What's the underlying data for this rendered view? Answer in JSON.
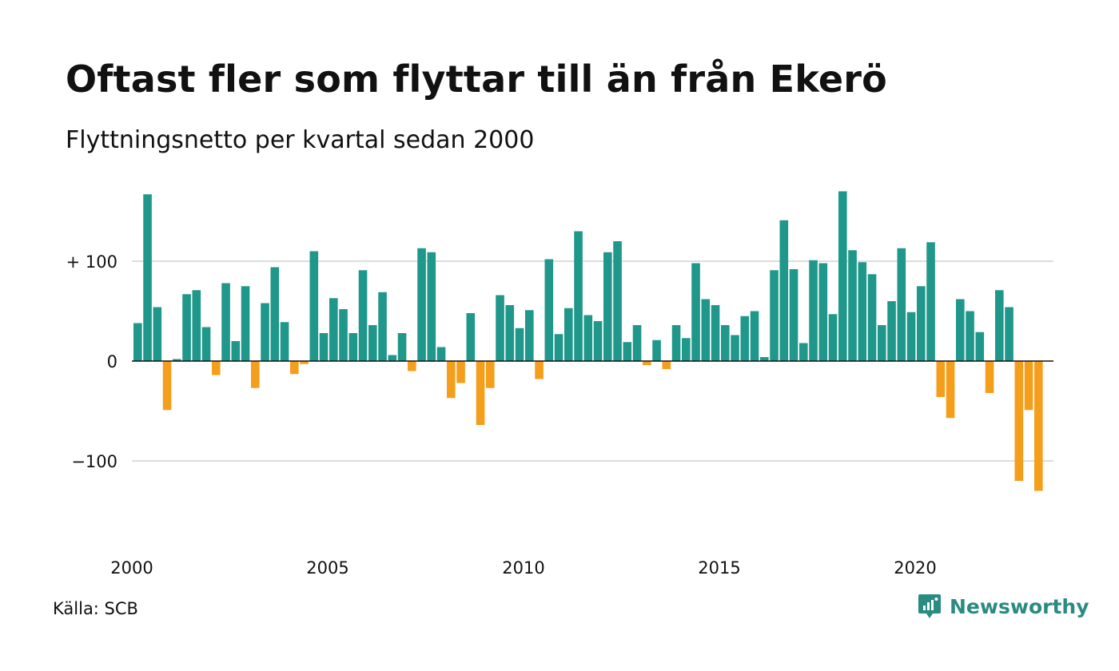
{
  "header": {
    "title": "Oftast fler som flyttar till än från Ekerö",
    "subtitle": "Flyttningsnetto per kvartal sedan 2000"
  },
  "footer": {
    "source": "Källa: SCB",
    "brand": "Newsworthy",
    "brand_icon": "newsworthy-logo-icon"
  },
  "colors": {
    "positive": "#1f978a",
    "negative": "#f59e1b",
    "grid": "#dddddd",
    "zero_line": "#111111",
    "brand": "#2a8b82"
  },
  "chart_data": {
    "type": "bar",
    "title": "Oftast fler som flyttar till än från Ekerö",
    "subtitle": "Flyttningsnetto per kvartal sedan 2000",
    "x_start": "2000 Q1",
    "x_interval": "quarter",
    "x_ticks": [
      "2000",
      "2005",
      "2010",
      "2015",
      "2020"
    ],
    "y_ticks": [
      {
        "value": 100,
        "label": "+ 100"
      },
      {
        "value": 0,
        "label": "0"
      },
      {
        "value": -100,
        "label": "−100"
      }
    ],
    "ylim": [
      -135,
      175
    ],
    "grid": true,
    "values": [
      38,
      167,
      54,
      -49,
      2,
      67,
      71,
      34,
      -14,
      78,
      20,
      75,
      -27,
      58,
      94,
      39,
      -13,
      -3,
      110,
      28,
      63,
      52,
      28,
      91,
      36,
      69,
      6,
      28,
      -10,
      113,
      109,
      14,
      -37,
      -22,
      48,
      -64,
      -27,
      66,
      56,
      33,
      51,
      -18,
      102,
      27,
      53,
      130,
      46,
      40,
      109,
      120,
      19,
      36,
      -4,
      21,
      -8,
      36,
      23,
      98,
      62,
      56,
      36,
      26,
      45,
      50,
      4,
      91,
      141,
      92,
      18,
      101,
      98,
      47,
      170,
      111,
      99,
      87,
      36,
      60,
      113,
      49,
      75,
      119,
      -36,
      -57,
      62,
      50,
      29,
      -32,
      71,
      54,
      -120,
      -49,
      -130
    ]
  }
}
